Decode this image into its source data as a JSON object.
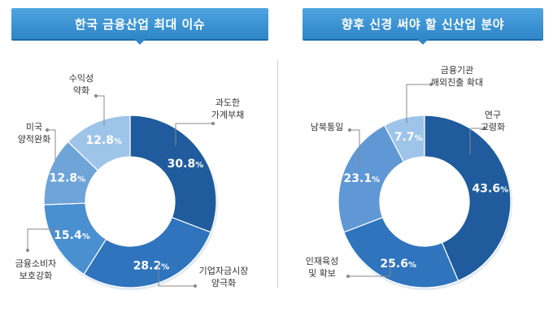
{
  "chart_data": [
    {
      "type": "pie",
      "title": "한국 금융산업 최대 이슈",
      "unit": "%",
      "slices": [
        {
          "label_lines": [
            "과도한",
            "가계부채"
          ],
          "value": 30.8,
          "value_text": "30.8",
          "color": "#1f5b9d"
        },
        {
          "label_lines": [
            "기업자금시장",
            "양극화"
          ],
          "value": 28.2,
          "value_text": "28.2",
          "color": "#2f74bd"
        },
        {
          "label_lines": [
            "금융소비자",
            "보호강화"
          ],
          "value": 15.4,
          "value_text": "15.4",
          "color": "#4a8fd0"
        },
        {
          "label_lines": [
            "미국",
            "양적완화"
          ],
          "value": 12.8,
          "value_text": "12.8",
          "color": "#6fa4d9"
        },
        {
          "label_lines": [
            "수익성",
            "약화"
          ],
          "value": 12.8,
          "value_text": "12.8",
          "color": "#9fc4e9"
        }
      ]
    },
    {
      "type": "pie",
      "title": "향후 신경 써야 할 신산업 분야",
      "unit": "%",
      "slices": [
        {
          "label_lines": [
            "연구",
            "고령화"
          ],
          "value": 43.6,
          "value_text": "43.6",
          "color": "#1f5b9d"
        },
        {
          "label_lines": [
            "인재육성",
            "및 확보"
          ],
          "value": 25.6,
          "value_text": "25.6",
          "color": "#2f74bd"
        },
        {
          "label_lines": [
            "남북통일"
          ],
          "value": 23.1,
          "value_text": "23.1",
          "color": "#5f98d4"
        },
        {
          "label_lines": [
            "금융기관",
            "해외진출 확대"
          ],
          "value": 7.7,
          "value_text": "7.7",
          "color": "#9fc4e9"
        }
      ]
    }
  ]
}
